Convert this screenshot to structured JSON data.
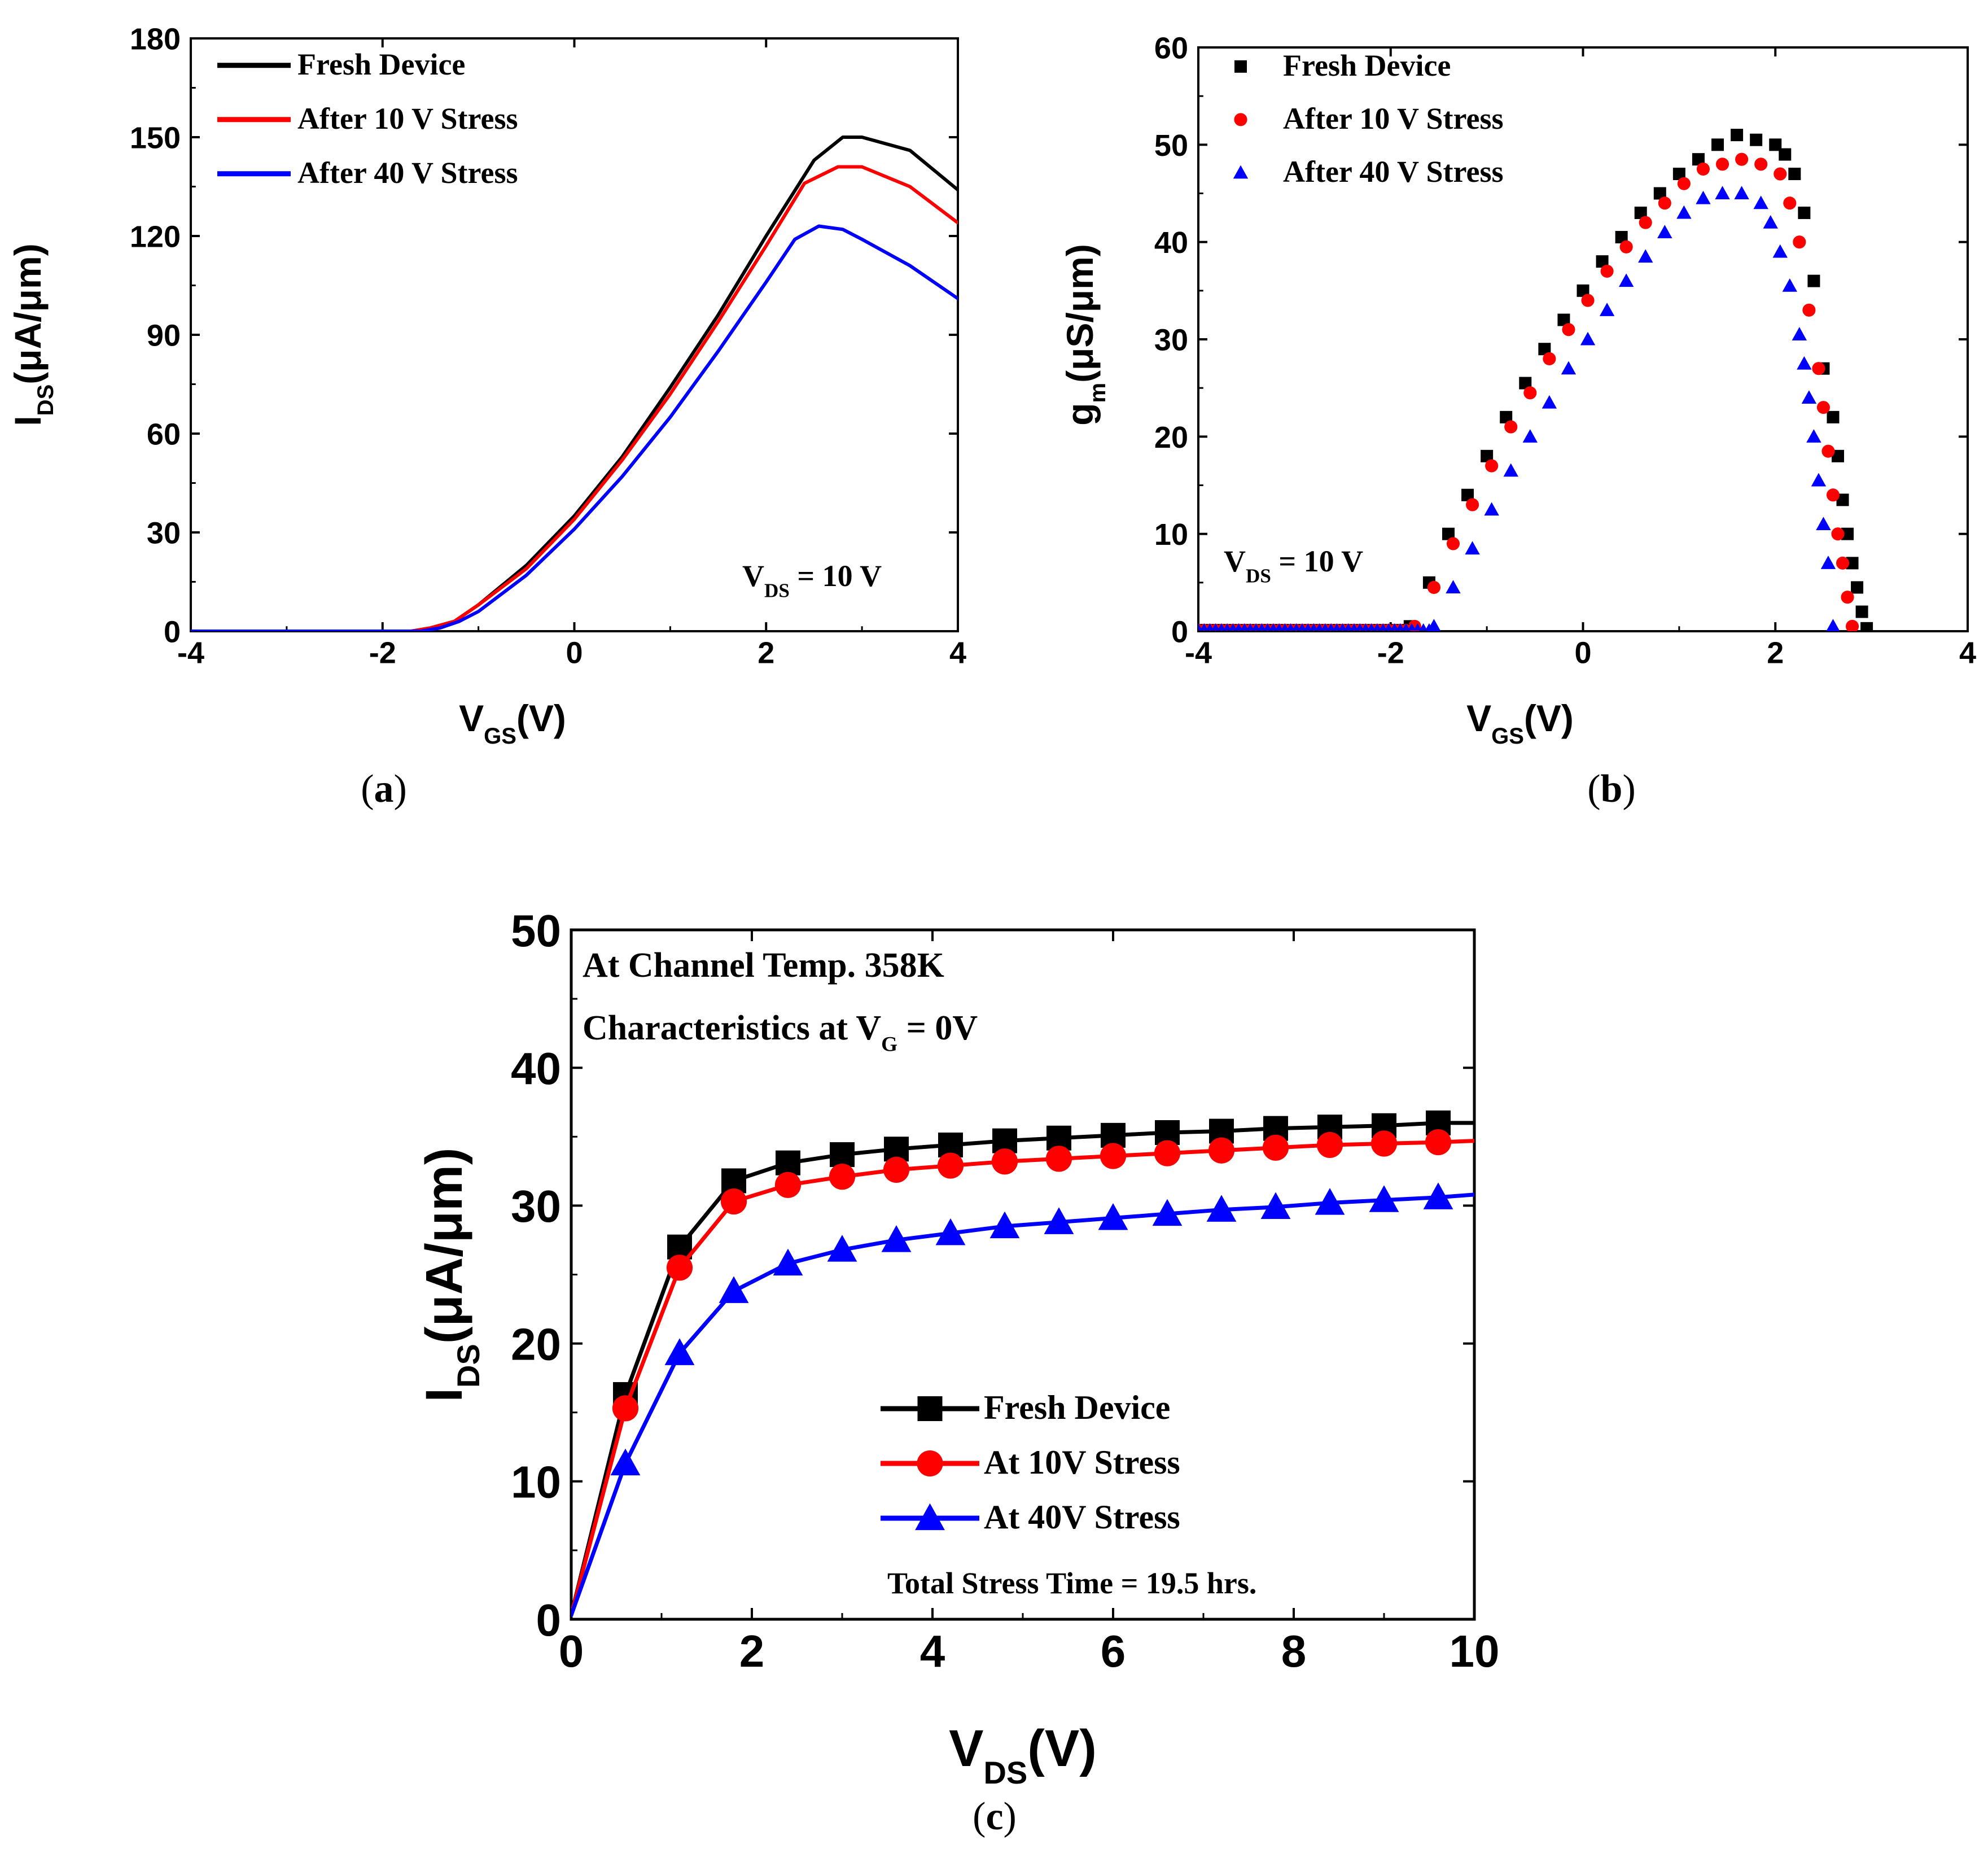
{
  "chart_data": [
    {
      "id": "a",
      "type": "line",
      "panel_label": "(a)",
      "panel_letter": "a",
      "ylabel": {
        "main": "I",
        "sub": "DS",
        "rest": "(μA/μm)"
      },
      "xlabel": {
        "main": "V",
        "sub": "GS",
        "rest": "(V)"
      },
      "xlim": [
        -4,
        4
      ],
      "ylim": [
        0,
        180
      ],
      "xticks": [
        -4,
        -2,
        0,
        2,
        4
      ],
      "yticks": [
        0,
        30,
        60,
        90,
        120,
        150,
        180
      ],
      "annotation": {
        "main": "V",
        "sub": "DS",
        "rest": " = 10 V"
      },
      "legend_position": "top-left",
      "series": [
        {
          "name": "Fresh Device",
          "color": "#000000",
          "x": [
            -4,
            -2,
            -1.7,
            -1.5,
            -1.25,
            -1.0,
            -0.5,
            0,
            0.5,
            1.0,
            1.5,
            2.0,
            2.5,
            2.8,
            3.0,
            3.5,
            4.0
          ],
          "y": [
            0,
            0,
            0,
            1,
            3,
            8,
            20,
            35,
            53,
            74,
            96,
            120,
            143,
            150,
            150,
            146,
            134
          ]
        },
        {
          "name": "After 10 V Stress",
          "color": "#ff0000",
          "x": [
            -4,
            -2,
            -1.7,
            -1.5,
            -1.25,
            -1.0,
            -0.5,
            0,
            0.5,
            1.0,
            1.5,
            2.0,
            2.4,
            2.75,
            3.0,
            3.5,
            4.0
          ],
          "y": [
            0,
            0,
            0,
            1,
            3,
            8,
            19,
            34,
            52,
            72,
            94,
            117,
            136,
            141,
            141,
            135,
            124
          ]
        },
        {
          "name": "After 40 V Stress",
          "color": "#0000ff",
          "x": [
            -4,
            -2,
            -1.6,
            -1.4,
            -1.2,
            -1.0,
            -0.5,
            0,
            0.5,
            1.0,
            1.5,
            2.0,
            2.3,
            2.55,
            2.8,
            3.0,
            3.5,
            4.0
          ],
          "y": [
            0,
            0,
            0,
            1,
            3,
            6,
            17,
            31,
            47,
            65,
            85,
            106,
            119,
            123,
            122,
            119,
            111,
            101
          ]
        }
      ]
    },
    {
      "id": "b",
      "type": "scatter",
      "panel_label": "(b)",
      "panel_letter": "b",
      "ylabel": {
        "main": "g",
        "sub": "m",
        "rest": "(μS/μm)"
      },
      "xlabel": {
        "main": "V",
        "sub": "GS",
        "rest": "(V)"
      },
      "xlim": [
        -4,
        4
      ],
      "ylim": [
        0,
        60
      ],
      "xticks": [
        -4,
        -2,
        0,
        2,
        4
      ],
      "yticks": [
        0,
        10,
        20,
        30,
        40,
        50,
        60
      ],
      "annotation": {
        "main": "V",
        "sub": "DS",
        "rest": " = 10 V"
      },
      "legend_position": "top-left",
      "series": [
        {
          "name": "Fresh Device",
          "color": "#000000",
          "marker": "square",
          "x": [
            -1.8,
            -1.6,
            -1.4,
            -1.2,
            -1.0,
            -0.8,
            -0.6,
            -0.4,
            -0.2,
            0.0,
            0.2,
            0.4,
            0.6,
            0.8,
            1.0,
            1.2,
            1.4,
            1.6,
            1.8,
            2.0,
            2.1,
            2.2,
            2.3,
            2.4,
            2.5,
            2.6,
            2.65,
            2.7,
            2.75,
            2.8,
            2.85,
            2.9,
            2.95
          ],
          "y": [
            0.5,
            5,
            10,
            14,
            18,
            22,
            25.5,
            29,
            32,
            35,
            38,
            40.5,
            43,
            45,
            47,
            48.5,
            50,
            51,
            50.5,
            50,
            49,
            47,
            43,
            36,
            27,
            22,
            18,
            13.5,
            10,
            7,
            4.5,
            2,
            0.3
          ]
        },
        {
          "name": "After 10 V Stress",
          "color": "#ff0000",
          "marker": "circle",
          "x": [
            -1.75,
            -1.55,
            -1.35,
            -1.15,
            -0.95,
            -0.75,
            -0.55,
            -0.35,
            -0.15,
            0.05,
            0.25,
            0.45,
            0.65,
            0.85,
            1.05,
            1.25,
            1.45,
            1.65,
            1.85,
            2.05,
            2.15,
            2.25,
            2.35,
            2.45,
            2.5,
            2.55,
            2.6,
            2.65,
            2.7,
            2.75,
            2.8
          ],
          "y": [
            0.5,
            4.5,
            9,
            13,
            17,
            21,
            24.5,
            28,
            31,
            34,
            37,
            39.5,
            42,
            44,
            46,
            47.5,
            48,
            48.5,
            48,
            47,
            44,
            40,
            33,
            27,
            23,
            18.5,
            14,
            10,
            7,
            3.5,
            0.5
          ]
        },
        {
          "name": "After 40 V Stress",
          "color": "#0000ff",
          "marker": "triangle",
          "x": [
            -1.55,
            -1.35,
            -1.15,
            -0.95,
            -0.75,
            -0.55,
            -0.35,
            -0.15,
            0.05,
            0.25,
            0.45,
            0.65,
            0.85,
            1.05,
            1.25,
            1.45,
            1.65,
            1.85,
            1.95,
            2.05,
            2.15,
            2.25,
            2.3,
            2.35,
            2.4,
            2.45,
            2.5,
            2.55,
            2.6
          ],
          "y": [
            0.5,
            4.5,
            8.5,
            12.5,
            16.5,
            20,
            23.5,
            27,
            30,
            33,
            36,
            38.5,
            41,
            43,
            44.5,
            45,
            45,
            44,
            42,
            39,
            35.5,
            30.5,
            27.5,
            24,
            20,
            15.5,
            11,
            7,
            0.5
          ]
        }
      ]
    },
    {
      "id": "c",
      "type": "line",
      "panel_label": "(c)",
      "panel_letter": "c",
      "ylabel": {
        "main": "I",
        "sub": "DS",
        "rest": "(μA/μm)"
      },
      "xlabel": {
        "main": "V",
        "sub": "DS",
        "rest": "(V)"
      },
      "xlim": [
        0,
        10
      ],
      "ylim": [
        0,
        50
      ],
      "xticks": [
        0,
        2,
        4,
        6,
        8,
        10
      ],
      "yticks": [
        0,
        10,
        20,
        30,
        40,
        50
      ],
      "annotations": [
        {
          "text": "At Channel Temp. 358K"
        },
        {
          "main": "Characteristics at V",
          "sub": "G",
          "rest": " = 0V"
        }
      ],
      "note": "Total Stress Time = 19.5 hrs.",
      "legend_position": "bottom-right",
      "series": [
        {
          "name": "Fresh Device",
          "color": "#000000",
          "marker": "square",
          "x": [
            0,
            0.6,
            1.2,
            1.8,
            2.4,
            3.0,
            3.6,
            4.2,
            4.8,
            5.4,
            6.0,
            6.6,
            7.2,
            7.8,
            8.4,
            9.0,
            9.6,
            10.0
          ],
          "y": [
            0.3,
            16.3,
            27,
            31.8,
            33.1,
            33.7,
            34.1,
            34.4,
            34.7,
            34.9,
            35.1,
            35.3,
            35.4,
            35.6,
            35.7,
            35.8,
            36,
            36
          ]
        },
        {
          "name": "At 10V Stress",
          "color": "#ff0000",
          "marker": "circle",
          "x": [
            0,
            0.6,
            1.2,
            1.8,
            2.4,
            3.0,
            3.6,
            4.2,
            4.8,
            5.4,
            6.0,
            6.6,
            7.2,
            7.8,
            8.4,
            9.0,
            9.6,
            10.0
          ],
          "y": [
            0.3,
            15.3,
            25.5,
            30.3,
            31.5,
            32.1,
            32.6,
            32.9,
            33.2,
            33.4,
            33.6,
            33.8,
            34,
            34.2,
            34.4,
            34.5,
            34.6,
            34.7
          ]
        },
        {
          "name": "At 40V Stress",
          "color": "#0000ff",
          "marker": "triangle",
          "x": [
            0,
            0.6,
            1.2,
            1.8,
            2.4,
            3.0,
            3.6,
            4.2,
            4.8,
            5.4,
            6.0,
            6.6,
            7.2,
            7.8,
            8.4,
            9.0,
            9.6,
            10.0
          ],
          "y": [
            0.3,
            11.3,
            19.3,
            23.8,
            25.8,
            26.8,
            27.5,
            28,
            28.5,
            28.8,
            29.1,
            29.4,
            29.7,
            29.9,
            30.2,
            30.4,
            30.6,
            30.8
          ]
        }
      ]
    }
  ]
}
